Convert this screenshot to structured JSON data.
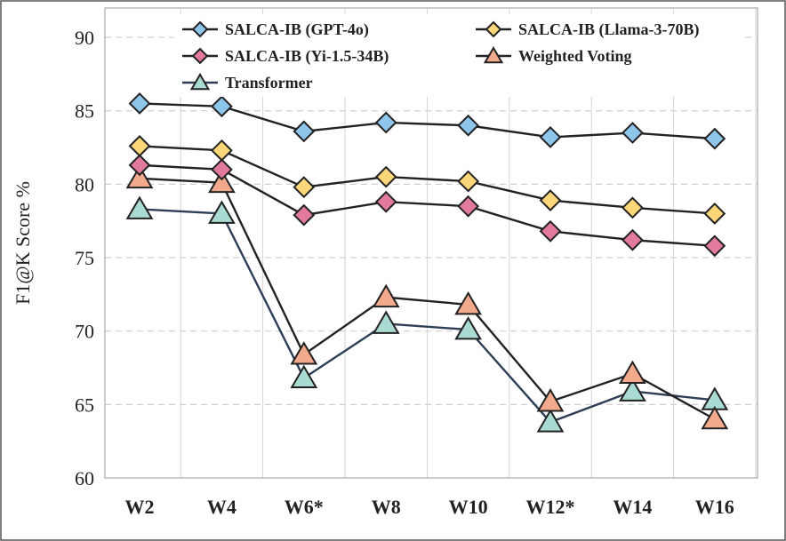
{
  "chart_data": {
    "type": "line",
    "ylabel": "F1@K Score %",
    "categories": [
      "W2",
      "W4",
      "W6*",
      "W8",
      "W10",
      "W12*",
      "W14",
      "W16"
    ],
    "ylim": [
      60,
      92
    ],
    "yticks": [
      60,
      65,
      70,
      75,
      80,
      85,
      90
    ],
    "grid": true,
    "legend_position": "top",
    "series": [
      {
        "name": "SALCA-IB (GPT-4o)",
        "marker": "diamond",
        "color": "#8ec5ea",
        "line_color": "#222222",
        "values": [
          85.5,
          85.3,
          83.6,
          84.2,
          84.0,
          83.2,
          83.5,
          83.1
        ]
      },
      {
        "name": "SALCA-IB (Llama-3-70B)",
        "marker": "diamond",
        "color": "#fbd77a",
        "line_color": "#222222",
        "values": [
          82.6,
          82.3,
          79.8,
          80.5,
          80.2,
          78.9,
          78.4,
          78.0
        ]
      },
      {
        "name": "SALCA-IB (Yi-1.5-34B)",
        "marker": "diamond",
        "color": "#e27a9d",
        "line_color": "#222222",
        "values": [
          81.3,
          81.0,
          77.9,
          78.8,
          78.5,
          76.8,
          76.2,
          75.8
        ]
      },
      {
        "name": "Weighted Voting",
        "marker": "triangle",
        "color": "#f2a98c",
        "line_color": "#222222",
        "values": [
          80.4,
          80.1,
          68.4,
          72.3,
          71.8,
          65.2,
          67.1,
          64.0
        ]
      },
      {
        "name": "Transformer",
        "marker": "triangle",
        "color": "#a9dbd2",
        "line_color": "#2e3f55",
        "values": [
          78.3,
          78.0,
          66.8,
          70.5,
          70.1,
          63.8,
          65.9,
          65.3
        ]
      }
    ]
  }
}
